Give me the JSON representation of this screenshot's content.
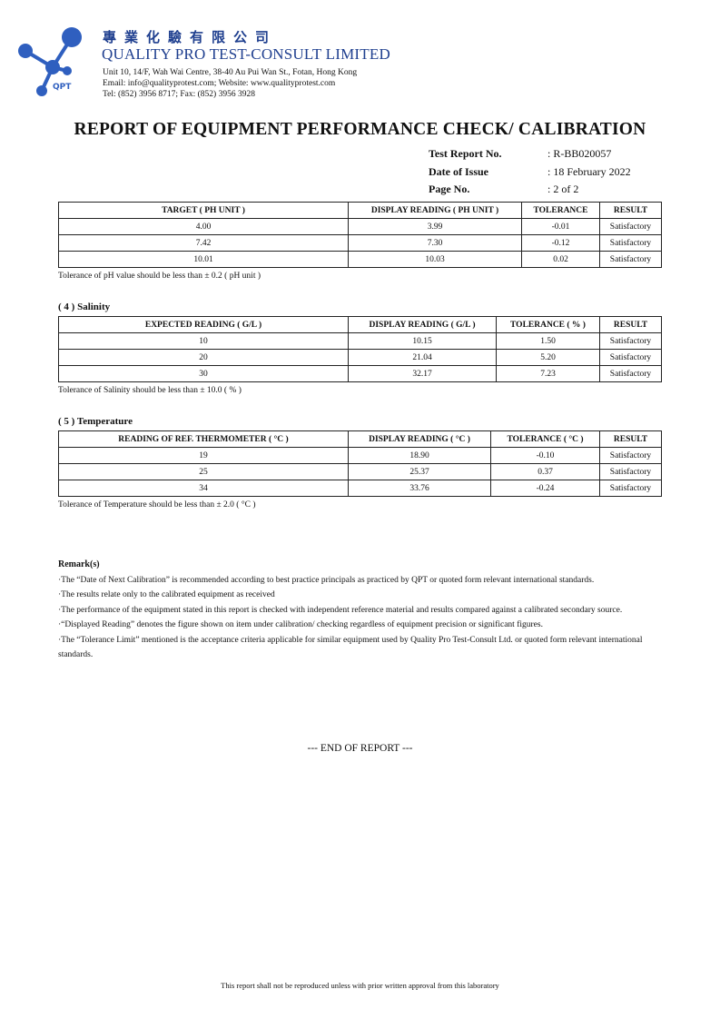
{
  "header": {
    "logo_text": "QPT",
    "chinese_name": "專業化驗有限公司",
    "company_name": "QUALITY PRO TEST-CONSULT LIMITED",
    "address": "Unit 10, 14/F, Wah Wai Centre, 38-40 Au Pui Wan St., Fotan, Hong Kong",
    "email_web": "Email: info@qualityprotest.com; Website: www.qualityprotest.com",
    "phone": "Tel: (852) 3956 8717; Fax: (852) 3956 3928",
    "brand_color": "#2f5fbf"
  },
  "title": "REPORT OF EQUIPMENT PERFORMANCE CHECK/ CALIBRATION",
  "meta": [
    {
      "label": "Test Report No.",
      "value": ": R-BB020057"
    },
    {
      "label": "Date of Issue",
      "value": ": 18 February 2022"
    },
    {
      "label": "Page No.",
      "value": ": 2 of 2"
    }
  ],
  "tables": [
    {
      "heading": "",
      "headers": [
        "TARGET ( PH UNIT )",
        "DISPLAY READING ( PH UNIT )",
        "TOLERANCE",
        "RESULT"
      ],
      "rows": [
        [
          "4.00",
          "3.99",
          "-0.01",
          "Satisfactory"
        ],
        [
          "7.42",
          "7.30",
          "-0.12",
          "Satisfactory"
        ],
        [
          "10.01",
          "10.03",
          "0.02",
          "Satisfactory"
        ]
      ],
      "note": "Tolerance of pH value should be less than ± 0.2 ( pH unit )"
    },
    {
      "heading": "( 4 )   Salinity",
      "headers": [
        "EXPECTED READING ( G/L )",
        "DISPLAY READING ( G/L )",
        "TOLERANCE ( % )",
        "RESULT"
      ],
      "rows": [
        [
          "10",
          "10.15",
          "1.50",
          "Satisfactory"
        ],
        [
          "20",
          "21.04",
          "5.20",
          "Satisfactory"
        ],
        [
          "30",
          "32.17",
          "7.23",
          "Satisfactory"
        ]
      ],
      "note": "Tolerance of Salinity should be less than ± 10.0 ( % )"
    },
    {
      "heading": "( 5 )   Temperature",
      "headers": [
        "READING OF REF. THERMOMETER ( °C )",
        "DISPLAY READING ( °C )",
        "TOLERANCE ( °C )",
        "RESULT"
      ],
      "rows": [
        [
          "19",
          "18.90",
          "-0.10",
          "Satisfactory"
        ],
        [
          "25",
          "25.37",
          "0.37",
          "Satisfactory"
        ],
        [
          "34",
          "33.76",
          "-0.24",
          "Satisfactory"
        ]
      ],
      "note": "Tolerance of Temperature should be less than ± 2.0 ( °C )"
    }
  ],
  "remarks": {
    "title": "Remark(s)",
    "items": [
      "·The “Date of Next Calibration” is recommended according to best practice principals as practiced by QPT or quoted form relevant international standards.",
      "·The results relate only to the calibrated equipment as received",
      "·The performance of the equipment stated in this report is checked with independent reference material and results compared against a calibrated secondary source.",
      "·“Displayed Reading” denotes the figure shown on item under calibration/ checking regardless of equipment precision or significant figures.",
      "·The “Tolerance Limit” mentioned is the acceptance criteria applicable for similar equipment used by Quality Pro Test-Consult Ltd. or quoted form relevant international standards."
    ]
  },
  "end_text": "--- END OF REPORT ---",
  "footer": "This report shall not be reproduced unless with prior written approval from this laboratory"
}
